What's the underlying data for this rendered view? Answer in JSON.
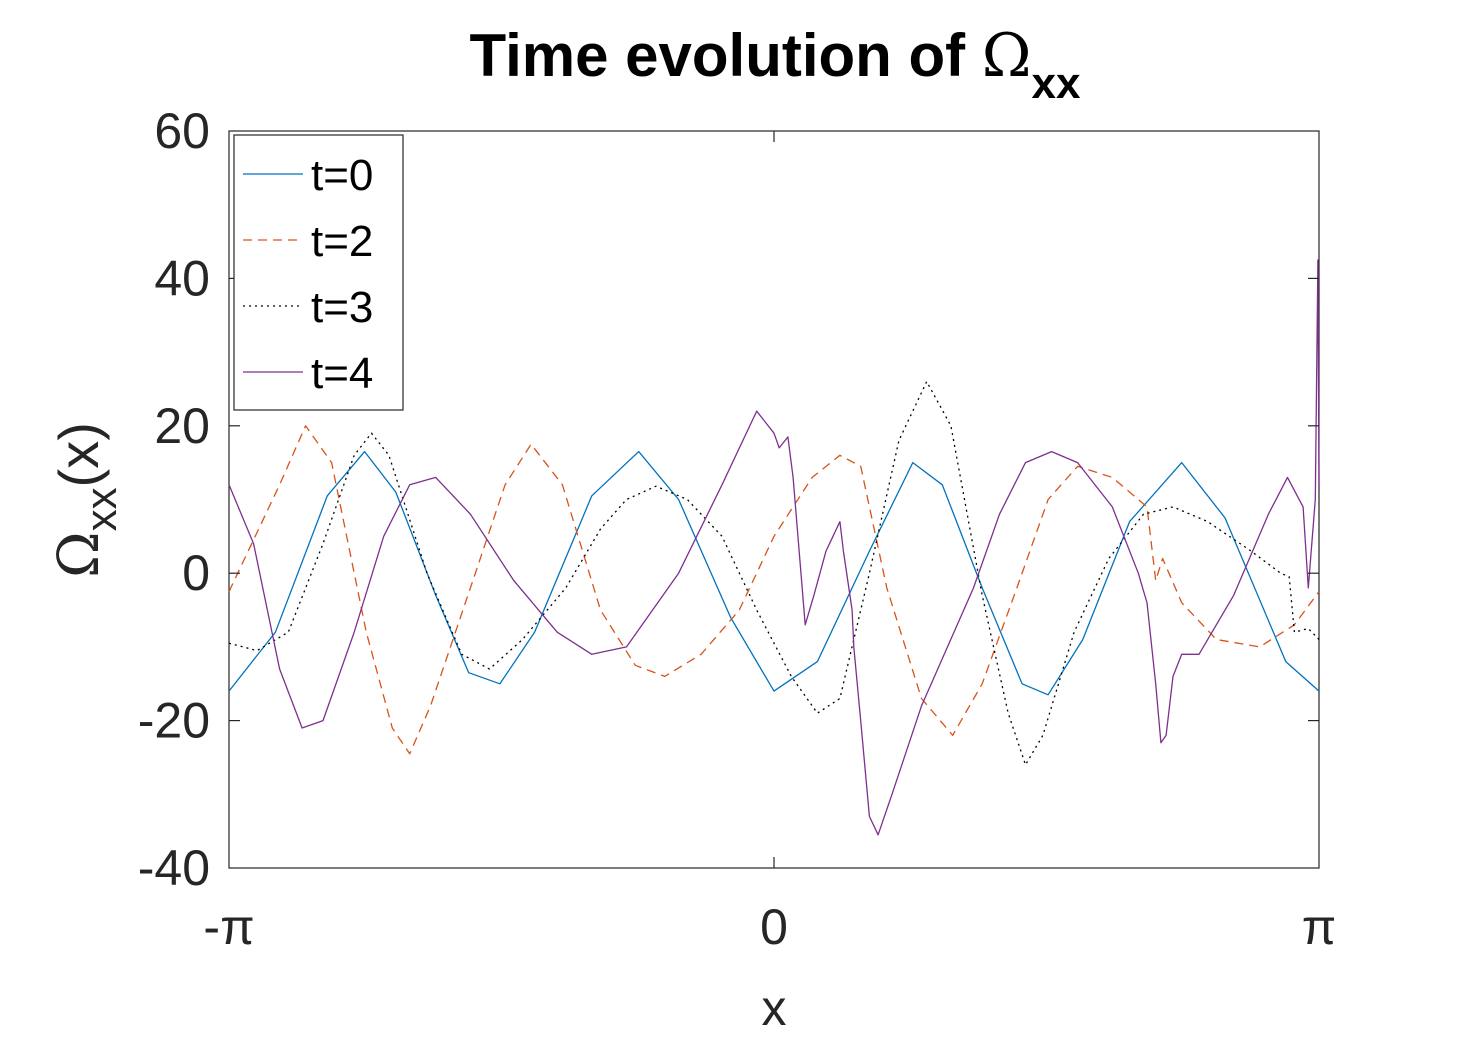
{
  "chart_data": {
    "type": "line",
    "title": {
      "main": "Time evolution of ",
      "symbol": "Ω",
      "subscript": "xx"
    },
    "xlabel": "x",
    "ylabel": {
      "symbol": "Ω",
      "subscript": "xx",
      "suffix": "(x)"
    },
    "xlim": [
      -3.14159,
      3.14159
    ],
    "ylim": [
      -40,
      60
    ],
    "xticks": [
      {
        "value": -3.14159,
        "label": "-π"
      },
      {
        "value": 0,
        "label": "0"
      },
      {
        "value": 3.14159,
        "label": "π"
      }
    ],
    "yticks": [
      {
        "value": -40,
        "label": "-40"
      },
      {
        "value": -20,
        "label": "-20"
      },
      {
        "value": 0,
        "label": "0"
      },
      {
        "value": 20,
        "label": "20"
      },
      {
        "value": 40,
        "label": "40"
      },
      {
        "value": 60,
        "label": "60"
      }
    ],
    "grid": false,
    "legend_position": "top-left",
    "series": [
      {
        "name": "t=0",
        "color": "#0072BD",
        "dash": "solid",
        "points": [
          [
            -3.1416,
            -16
          ],
          [
            -2.874,
            -8
          ],
          [
            -2.575,
            10.5
          ],
          [
            -2.36,
            16.5
          ],
          [
            -2.18,
            11
          ],
          [
            -1.95,
            -3
          ],
          [
            -1.76,
            -13.5
          ],
          [
            -1.58,
            -15
          ],
          [
            -1.38,
            -8
          ],
          [
            -1.05,
            10.5
          ],
          [
            -0.78,
            16.5
          ],
          [
            -0.55,
            10
          ],
          [
            -0.25,
            -6
          ],
          [
            0,
            -16
          ],
          [
            0.25,
            -12
          ],
          [
            0.55,
            3
          ],
          [
            0.8,
            15
          ],
          [
            0.97,
            12
          ],
          [
            1.2,
            -2
          ],
          [
            1.43,
            -15
          ],
          [
            1.58,
            -16.5
          ],
          [
            1.78,
            -9
          ],
          [
            2.05,
            7
          ],
          [
            2.35,
            15
          ],
          [
            2.6,
            7.5
          ],
          [
            2.95,
            -12
          ],
          [
            3.1416,
            -16
          ]
        ]
      },
      {
        "name": "t=2",
        "color": "#D95319",
        "dash": "dashed",
        "points": [
          [
            -3.1416,
            -2.5
          ],
          [
            -2.85,
            12
          ],
          [
            -2.7,
            20
          ],
          [
            -2.55,
            15
          ],
          [
            -2.35,
            -8
          ],
          [
            -2.2,
            -21
          ],
          [
            -2.1,
            -24.5
          ],
          [
            -1.98,
            -18
          ],
          [
            -1.75,
            -2
          ],
          [
            -1.55,
            12
          ],
          [
            -1.4,
            17.5
          ],
          [
            -1.22,
            12
          ],
          [
            -1.0,
            -5
          ],
          [
            -0.8,
            -12.5
          ],
          [
            -0.63,
            -14
          ],
          [
            -0.42,
            -11
          ],
          [
            -0.2,
            -5
          ],
          [
            0,
            5
          ],
          [
            0.22,
            13
          ],
          [
            0.38,
            16
          ],
          [
            0.5,
            14.5
          ],
          [
            0.65,
            -2
          ],
          [
            0.85,
            -17
          ],
          [
            1.03,
            -22
          ],
          [
            1.2,
            -15
          ],
          [
            1.4,
            -2
          ],
          [
            1.58,
            10
          ],
          [
            1.75,
            14.5
          ],
          [
            1.95,
            13
          ],
          [
            2.15,
            9
          ],
          [
            2.2,
            -1
          ],
          [
            2.24,
            2
          ],
          [
            2.35,
            -4
          ],
          [
            2.55,
            -9
          ],
          [
            2.8,
            -10
          ],
          [
            3.0,
            -7
          ],
          [
            3.1416,
            -2.5
          ]
        ]
      },
      {
        "name": "t=3",
        "color": "#000000",
        "dash": "dotted",
        "points": [
          [
            -3.1416,
            -9.5
          ],
          [
            -2.98,
            -10.5
          ],
          [
            -2.8,
            -8
          ],
          [
            -2.6,
            4
          ],
          [
            -2.42,
            16
          ],
          [
            -2.32,
            19
          ],
          [
            -2.22,
            16
          ],
          [
            -2.0,
            0
          ],
          [
            -1.8,
            -11
          ],
          [
            -1.64,
            -13
          ],
          [
            -1.45,
            -9
          ],
          [
            -1.2,
            -2
          ],
          [
            -1.0,
            6
          ],
          [
            -0.85,
            10
          ],
          [
            -0.68,
            11.8
          ],
          [
            -0.5,
            10
          ],
          [
            -0.3,
            5
          ],
          [
            -0.1,
            -5
          ],
          [
            0.1,
            -14
          ],
          [
            0.25,
            -19
          ],
          [
            0.38,
            -17
          ],
          [
            0.55,
            0
          ],
          [
            0.72,
            18
          ],
          [
            0.88,
            26
          ],
          [
            1.02,
            20
          ],
          [
            1.2,
            -3
          ],
          [
            1.35,
            -19
          ],
          [
            1.45,
            -26
          ],
          [
            1.55,
            -22
          ],
          [
            1.73,
            -8
          ],
          [
            1.93,
            2
          ],
          [
            2.13,
            8
          ],
          [
            2.3,
            9
          ],
          [
            2.5,
            7
          ],
          [
            2.75,
            3
          ],
          [
            2.92,
            0
          ],
          [
            2.97,
            -0.5
          ],
          [
            3.0,
            -8
          ],
          [
            3.08,
            -7.5
          ],
          [
            3.1416,
            -9
          ]
        ]
      },
      {
        "name": "t=4",
        "color": "#7E2F8E",
        "dash": "solid",
        "points": [
          [
            -3.1416,
            12
          ],
          [
            -3.0,
            4
          ],
          [
            -2.85,
            -13
          ],
          [
            -2.72,
            -21
          ],
          [
            -2.6,
            -20
          ],
          [
            -2.42,
            -8
          ],
          [
            -2.25,
            5
          ],
          [
            -2.1,
            12
          ],
          [
            -1.95,
            13
          ],
          [
            -1.75,
            8
          ],
          [
            -1.5,
            -1
          ],
          [
            -1.25,
            -8
          ],
          [
            -1.05,
            -11
          ],
          [
            -0.85,
            -10
          ],
          [
            -0.55,
            0
          ],
          [
            -0.3,
            12
          ],
          [
            -0.1,
            22
          ],
          [
            0.0,
            19
          ],
          [
            0.03,
            17
          ],
          [
            0.08,
            18.5
          ],
          [
            0.11,
            13
          ],
          [
            0.18,
            -7
          ],
          [
            0.23,
            -3
          ],
          [
            0.3,
            3
          ],
          [
            0.34,
            5
          ],
          [
            0.38,
            7
          ],
          [
            0.4,
            3
          ],
          [
            0.45,
            -5
          ],
          [
            0.46,
            -10
          ],
          [
            0.5,
            -20
          ],
          [
            0.55,
            -33
          ],
          [
            0.6,
            -35.5
          ],
          [
            0.68,
            -30
          ],
          [
            0.85,
            -18
          ],
          [
            1.0,
            -10
          ],
          [
            1.15,
            -2
          ],
          [
            1.3,
            8
          ],
          [
            1.45,
            15
          ],
          [
            1.6,
            16.5
          ],
          [
            1.75,
            15
          ],
          [
            1.95,
            9
          ],
          [
            2.1,
            0
          ],
          [
            2.15,
            -4
          ],
          [
            2.2,
            -15
          ],
          [
            2.23,
            -23
          ],
          [
            2.26,
            -22
          ],
          [
            2.3,
            -14
          ],
          [
            2.35,
            -11
          ],
          [
            2.45,
            -11
          ],
          [
            2.65,
            -3
          ],
          [
            2.85,
            8
          ],
          [
            2.96,
            13
          ],
          [
            3.05,
            9
          ],
          [
            3.08,
            -2
          ],
          [
            3.12,
            10
          ],
          [
            3.135,
            42.5
          ],
          [
            3.1416,
            12
          ]
        ]
      }
    ]
  }
}
